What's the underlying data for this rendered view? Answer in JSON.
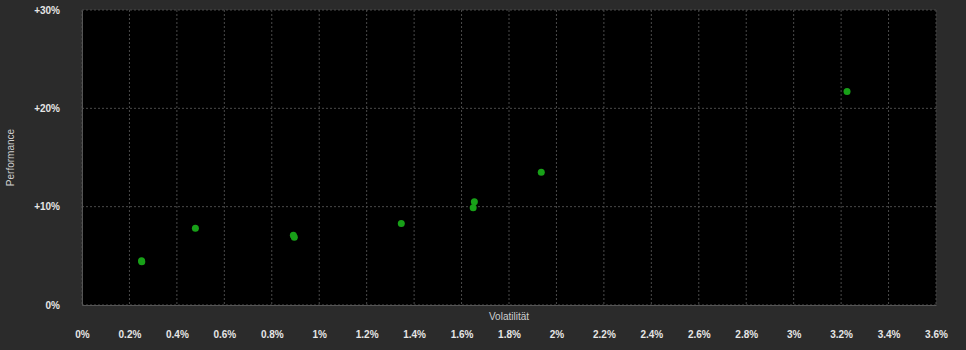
{
  "chart_data": {
    "type": "scatter",
    "xlabel": "Volatilität",
    "ylabel": "Performance",
    "x": [
      0.251,
      0.252,
      0.478,
      0.891,
      0.895,
      1.346,
      1.654,
      1.649,
      1.936,
      3.225
    ],
    "values": [
      4.5,
      4.4,
      7.8,
      7.1,
      6.9,
      8.3,
      10.5,
      9.9,
      13.5,
      21.7
    ],
    "color": "#18a018",
    "marker": "circle",
    "grid": true,
    "xlim": [
      0,
      3.6
    ],
    "ylim": [
      0,
      30
    ],
    "xticks": [
      {
        "value": 0,
        "label": "0%"
      },
      {
        "value": 0.2,
        "label": "0.2%"
      },
      {
        "value": 0.4,
        "label": "0.4%"
      },
      {
        "value": 0.6,
        "label": "0.6%"
      },
      {
        "value": 0.8,
        "label": "0.8%"
      },
      {
        "value": 1,
        "label": "1%"
      },
      {
        "value": 1.2,
        "label": "1.2%"
      },
      {
        "value": 1.4,
        "label": "1.4%"
      },
      {
        "value": 1.6,
        "label": "1.6%"
      },
      {
        "value": 1.8,
        "label": "1.8%"
      },
      {
        "value": 2,
        "label": "2%"
      },
      {
        "value": 2.2,
        "label": "2.2%"
      },
      {
        "value": 2.4,
        "label": "2.4%"
      },
      {
        "value": 2.6,
        "label": "2.6%"
      },
      {
        "value": 2.8,
        "label": "2.8%"
      },
      {
        "value": 3,
        "label": "3%"
      },
      {
        "value": 3.2,
        "label": "3.2%"
      },
      {
        "value": 3.4,
        "label": "3.4%"
      },
      {
        "value": 3.6,
        "label": "3.6%"
      }
    ],
    "yticks": [
      {
        "value": 0,
        "label": "0%"
      },
      {
        "value": 10,
        "label": "+10%"
      },
      {
        "value": 20,
        "label": "+20%"
      },
      {
        "value": 30,
        "label": "+30%"
      }
    ]
  }
}
